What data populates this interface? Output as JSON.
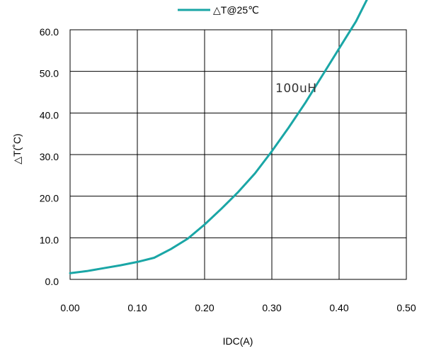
{
  "chart_data": {
    "type": "line",
    "xlabel": "IDC(A)",
    "ylabel": "△T(˚C)",
    "xlim": [
      0,
      0.5
    ],
    "ylim": [
      0,
      60
    ],
    "x_ticks": [
      "0.00",
      "0.10",
      "0.20",
      "0.30",
      "0.40",
      "0.50"
    ],
    "y_ticks": [
      "0.0",
      "10.0",
      "20.0",
      "30.0",
      "40.0",
      "50.0",
      "60.0"
    ],
    "grid": true,
    "legend_position": "top-center",
    "annotation": "100uH",
    "series": [
      {
        "name": "△T@25℃",
        "color": "#1aa6a6",
        "x": [
          0.0,
          0.025,
          0.05,
          0.075,
          0.1,
          0.125,
          0.15,
          0.175,
          0.2,
          0.225,
          0.25,
          0.275,
          0.3,
          0.325,
          0.35,
          0.375,
          0.4,
          0.425,
          0.45
        ],
        "y": [
          1.5,
          2.0,
          2.7,
          3.4,
          4.2,
          5.2,
          7.3,
          9.8,
          13.2,
          17.0,
          21.0,
          25.5,
          30.8,
          36.5,
          42.5,
          49.0,
          55.5,
          62.0,
          70.0
        ]
      }
    ]
  }
}
